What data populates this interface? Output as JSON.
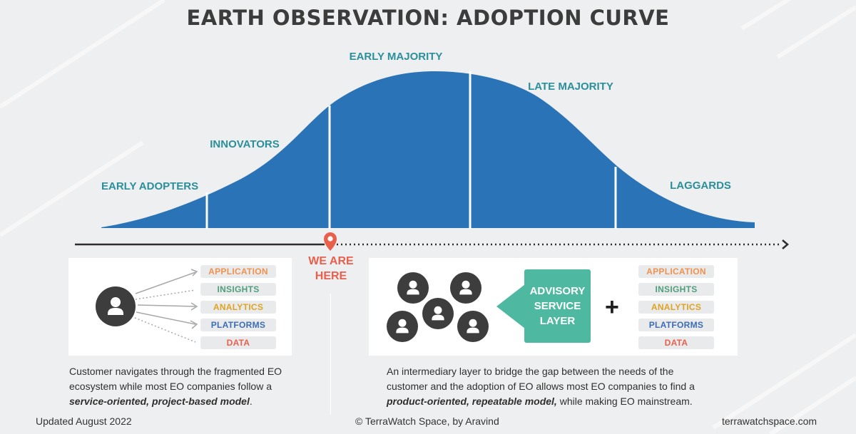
{
  "title": "EARTH OBSERVATION: ADOPTION CURVE",
  "segments": {
    "early_adopters": "EARLY ADOPTERS",
    "innovators": "INNOVATORS",
    "early_majority": "EARLY MAJORITY",
    "late_majority": "LATE MAJORITY",
    "laggards": "LAGGARDS"
  },
  "marker": {
    "line1": "WE ARE",
    "line2": "HERE"
  },
  "categories": [
    "APPLICATION",
    "INSIGHTS",
    "ANALYTICS",
    "PLATFORMS",
    "DATA"
  ],
  "advisory": {
    "line1": "ADVISORY",
    "line2": "SERVICE",
    "line3": "LAYER"
  },
  "plus": "+",
  "left_desc": {
    "line1": "Customer navigates through the fragmented EO",
    "line2": "ecosystem while most EO companies follow a",
    "emph": "service-oriented, project-based model",
    "end": "."
  },
  "right_desc": {
    "line1": "An intermediary layer to bridge the gap between the needs of the",
    "line2": "customer and the adoption of EO allows most EO companies to find a",
    "emph": "product-oriented, repeatable model,",
    "end": " while making EO mainstream."
  },
  "footer": {
    "updated": "Updated August 2022",
    "credit": "© TerraWatch Space, by Aravind",
    "site": "terrawatchspace.com"
  },
  "colors": {
    "curve": "#2a73b7",
    "teal": "#2b8f99",
    "marker": "#e85f4c",
    "advisory": "#4fb8a1"
  }
}
